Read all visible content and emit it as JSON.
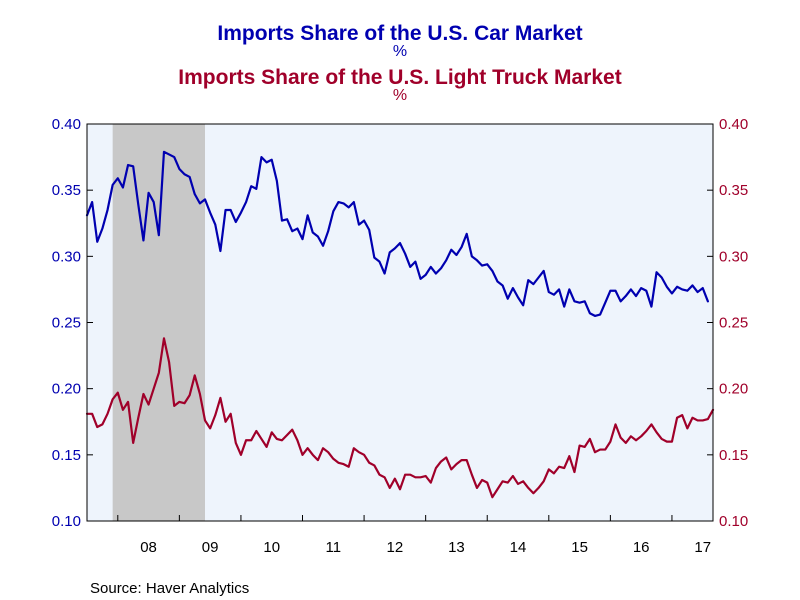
{
  "chart_data": {
    "type": "line",
    "title": "Imports Share of the U.S. Car Market",
    "title_unit": "%",
    "subtitle": "Imports Share of the U.S. Light Truck Market",
    "subtitle_unit": "%",
    "source": "Source:  Haver Analytics",
    "x_categories": [
      "08",
      "09",
      "10",
      "11",
      "12",
      "13",
      "14",
      "15",
      "16",
      "17"
    ],
    "x_start": "2007-07",
    "x_end": "2017-09",
    "left_axis": {
      "min": 0.1,
      "max": 0.4,
      "ticks": [
        "0.10",
        "0.15",
        "0.20",
        "0.25",
        "0.30",
        "0.35",
        "0.40"
      ]
    },
    "right_axis": {
      "min": 0.1,
      "max": 0.4,
      "ticks": [
        "0.10",
        "0.15",
        "0.20",
        "0.25",
        "0.30",
        "0.35",
        "0.40"
      ]
    },
    "recession_shading": {
      "start": "2007-12",
      "end": "2009-06",
      "color": "#c8c8c8"
    },
    "plot_background": "#eef4fc",
    "grid": false,
    "series": [
      {
        "name": "Imports Share of the U.S. Car Market",
        "axis": "left",
        "color": "#0000b0",
        "start": "2007-07",
        "values": [
          0.331,
          0.341,
          0.311,
          0.321,
          0.335,
          0.354,
          0.359,
          0.352,
          0.369,
          0.368,
          0.339,
          0.312,
          0.348,
          0.341,
          0.316,
          0.379,
          0.377,
          0.375,
          0.366,
          0.362,
          0.36,
          0.347,
          0.34,
          0.343,
          0.333,
          0.324,
          0.304,
          0.335,
          0.335,
          0.326,
          0.333,
          0.341,
          0.353,
          0.351,
          0.375,
          0.371,
          0.373,
          0.357,
          0.327,
          0.328,
          0.319,
          0.321,
          0.313,
          0.331,
          0.318,
          0.315,
          0.308,
          0.319,
          0.334,
          0.341,
          0.34,
          0.337,
          0.341,
          0.324,
          0.327,
          0.32,
          0.299,
          0.296,
          0.287,
          0.303,
          0.306,
          0.31,
          0.302,
          0.292,
          0.296,
          0.283,
          0.286,
          0.292,
          0.287,
          0.291,
          0.297,
          0.305,
          0.301,
          0.307,
          0.317,
          0.3,
          0.297,
          0.293,
          0.294,
          0.289,
          0.281,
          0.278,
          0.268,
          0.276,
          0.269,
          0.263,
          0.282,
          0.279,
          0.284,
          0.289,
          0.273,
          0.271,
          0.275,
          0.262,
          0.275,
          0.266,
          0.265,
          0.266,
          0.257,
          0.255,
          0.256,
          0.265,
          0.274,
          0.274,
          0.266,
          0.27,
          0.275,
          0.27,
          0.276,
          0.274,
          0.262,
          0.288,
          0.284,
          0.277,
          0.272,
          0.277,
          0.275,
          0.274,
          0.278,
          0.273,
          0.276,
          0.266
        ]
      },
      {
        "name": "Imports Share of the U.S. Light Truck Market",
        "axis": "right",
        "color": "#a0002a",
        "start": "2007-07",
        "values": [
          0.181,
          0.181,
          0.171,
          0.173,
          0.181,
          0.192,
          0.197,
          0.184,
          0.19,
          0.159,
          0.178,
          0.196,
          0.188,
          0.2,
          0.212,
          0.238,
          0.22,
          0.187,
          0.19,
          0.189,
          0.195,
          0.21,
          0.196,
          0.176,
          0.17,
          0.18,
          0.193,
          0.175,
          0.181,
          0.159,
          0.15,
          0.161,
          0.161,
          0.168,
          0.162,
          0.156,
          0.167,
          0.162,
          0.161,
          0.165,
          0.169,
          0.161,
          0.15,
          0.155,
          0.15,
          0.146,
          0.155,
          0.152,
          0.147,
          0.144,
          0.143,
          0.141,
          0.155,
          0.152,
          0.15,
          0.144,
          0.142,
          0.135,
          0.133,
          0.125,
          0.132,
          0.124,
          0.135,
          0.135,
          0.133,
          0.133,
          0.134,
          0.129,
          0.14,
          0.145,
          0.148,
          0.139,
          0.143,
          0.146,
          0.146,
          0.135,
          0.125,
          0.131,
          0.129,
          0.118,
          0.124,
          0.13,
          0.129,
          0.134,
          0.128,
          0.13,
          0.125,
          0.121,
          0.125,
          0.13,
          0.139,
          0.136,
          0.141,
          0.14,
          0.149,
          0.137,
          0.157,
          0.156,
          0.162,
          0.152,
          0.154,
          0.154,
          0.16,
          0.173,
          0.163,
          0.159,
          0.164,
          0.161,
          0.164,
          0.168,
          0.173,
          0.167,
          0.162,
          0.16,
          0.16,
          0.178,
          0.18,
          0.17,
          0.178,
          0.176,
          0.176,
          0.177,
          0.184
        ]
      }
    ]
  }
}
